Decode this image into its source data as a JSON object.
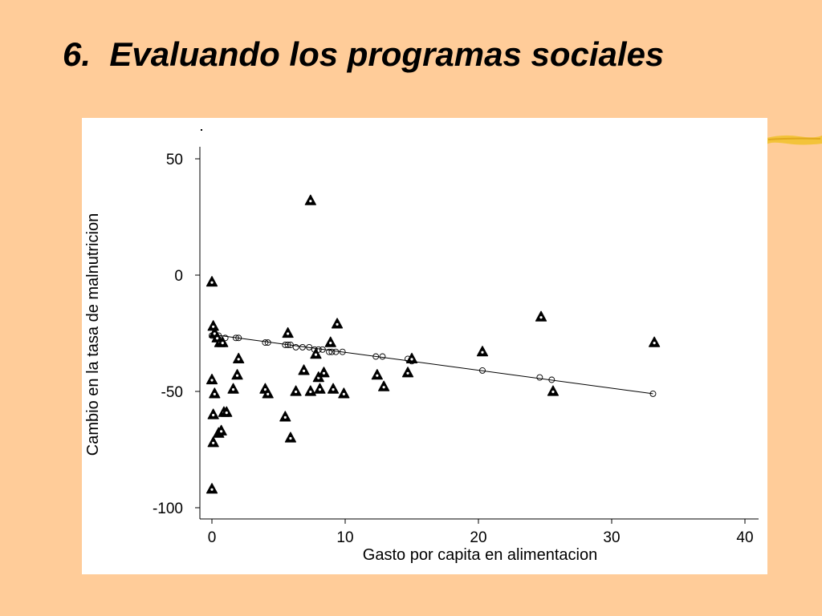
{
  "slide": {
    "title": "6.  Evaluando los programas sociales",
    "background": "#FFCC99",
    "accent_color": "#F2C230"
  },
  "chart_data": {
    "type": "scatter",
    "title": "",
    "xlabel": "Gasto por capita en alimentacion",
    "ylabel": "Cambio en la tasa de malnutricion",
    "xlim": [
      0,
      40
    ],
    "ylim": [
      -100,
      50
    ],
    "x_ticks": [
      0,
      10,
      20,
      30,
      40
    ],
    "y_ticks": [
      50,
      0,
      -50,
      -100
    ],
    "grid": false,
    "series": [
      {
        "marker": "filled-triangle",
        "color": "#000000",
        "points": [
          [
            0.0,
            -3
          ],
          [
            0.1,
            -22
          ],
          [
            0.2,
            -25
          ],
          [
            0.4,
            -27
          ],
          [
            0.6,
            -29
          ],
          [
            0.8,
            -29
          ],
          [
            0.0,
            -45
          ],
          [
            0.2,
            -51
          ],
          [
            0.1,
            -60
          ],
          [
            0.1,
            -72
          ],
          [
            0.5,
            -68
          ],
          [
            0.7,
            -67
          ],
          [
            0.9,
            -59
          ],
          [
            1.1,
            -59
          ],
          [
            0.0,
            -92
          ],
          [
            1.6,
            -49
          ],
          [
            1.9,
            -43
          ],
          [
            2.0,
            -36
          ],
          [
            4.0,
            -49
          ],
          [
            4.2,
            -51
          ],
          [
            5.7,
            -25
          ],
          [
            5.5,
            -61
          ],
          [
            5.9,
            -70
          ],
          [
            6.3,
            -50
          ],
          [
            6.9,
            -41
          ],
          [
            7.4,
            32
          ],
          [
            7.4,
            -50
          ],
          [
            7.8,
            -34
          ],
          [
            8.0,
            -44
          ],
          [
            8.1,
            -49
          ],
          [
            8.4,
            -42
          ],
          [
            8.9,
            -29
          ],
          [
            9.1,
            -49
          ],
          [
            9.4,
            -21
          ],
          [
            9.9,
            -51
          ],
          [
            12.4,
            -43
          ],
          [
            12.9,
            -48
          ],
          [
            14.7,
            -42
          ],
          [
            15.0,
            -36
          ],
          [
            20.3,
            -33
          ],
          [
            24.7,
            -18
          ],
          [
            25.6,
            -50
          ],
          [
            33.2,
            -29
          ]
        ]
      },
      {
        "marker": "hollow-circle",
        "color": "#000000",
        "points": [
          [
            0.0,
            -26
          ],
          [
            0.5,
            -26
          ],
          [
            1.0,
            -27
          ],
          [
            1.8,
            -27
          ],
          [
            2.0,
            -27
          ],
          [
            4.0,
            -29
          ],
          [
            4.2,
            -29
          ],
          [
            5.5,
            -30
          ],
          [
            5.7,
            -30
          ],
          [
            5.9,
            -30
          ],
          [
            6.3,
            -31
          ],
          [
            6.8,
            -31
          ],
          [
            7.3,
            -31
          ],
          [
            7.7,
            -32
          ],
          [
            8.0,
            -32
          ],
          [
            8.3,
            -32
          ],
          [
            8.8,
            -33
          ],
          [
            9.0,
            -33
          ],
          [
            9.3,
            -33
          ],
          [
            9.8,
            -33
          ],
          [
            12.3,
            -35
          ],
          [
            12.8,
            -35
          ],
          [
            14.7,
            -36
          ],
          [
            15.0,
            -37
          ],
          [
            20.3,
            -41
          ],
          [
            24.6,
            -44
          ],
          [
            25.5,
            -45
          ],
          [
            33.1,
            -51
          ]
        ]
      }
    ],
    "fit_line": {
      "x": [
        0,
        33.1
      ],
      "y": [
        -25.5,
        -51
      ]
    }
  }
}
